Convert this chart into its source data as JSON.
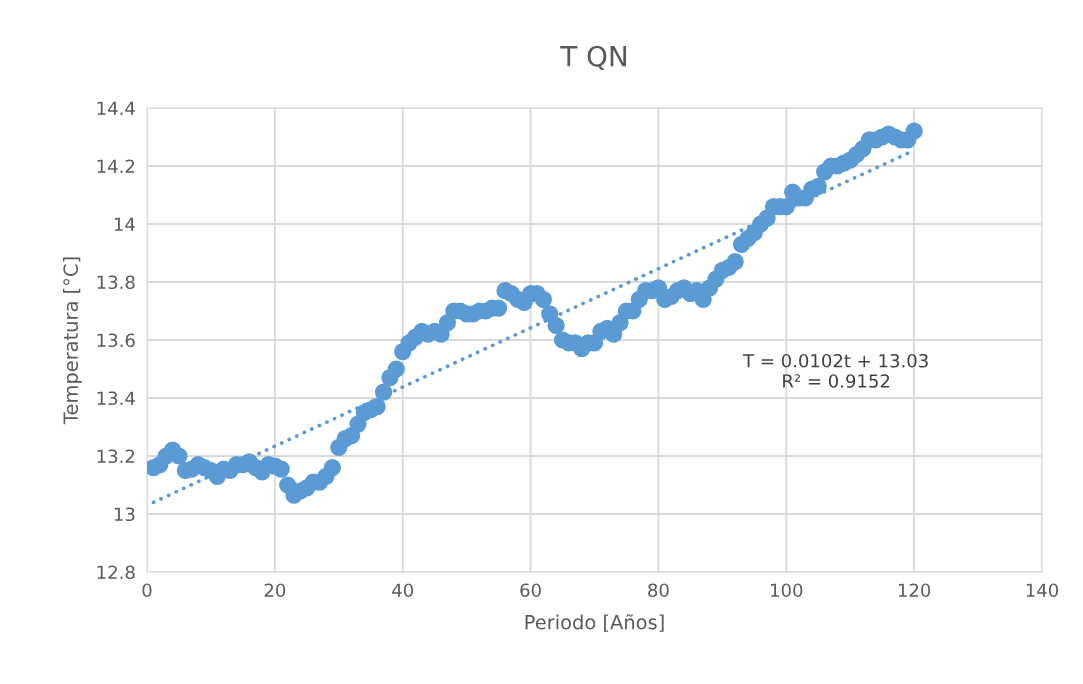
{
  "chart_data": {
    "type": "scatter",
    "title": "T QN",
    "xlabel": "Periodo [Años]",
    "ylabel": "Temperatura [°C]",
    "xlim": [
      0,
      140
    ],
    "xticks": [
      0,
      20,
      40,
      60,
      80,
      100,
      120,
      140
    ],
    "ylim": [
      12.8,
      14.4
    ],
    "yticks": [
      12.8,
      13,
      13.2,
      13.4,
      13.6,
      13.8,
      14,
      14.2,
      14.4
    ],
    "grid": true,
    "legend": false,
    "marker": "circle",
    "x": [
      1,
      2,
      3,
      4,
      5,
      6,
      7,
      8,
      9,
      10,
      11,
      12,
      13,
      14,
      15,
      16,
      17,
      18,
      19,
      20,
      21,
      22,
      23,
      24,
      25,
      26,
      27,
      28,
      29,
      30,
      31,
      32,
      33,
      34,
      35,
      36,
      37,
      38,
      39,
      40,
      41,
      42,
      43,
      44,
      45,
      46,
      47,
      48,
      49,
      50,
      51,
      52,
      53,
      54,
      55,
      56,
      57,
      58,
      59,
      60,
      61,
      62,
      63,
      64,
      65,
      66,
      67,
      68,
      69,
      70,
      71,
      72,
      73,
      74,
      75,
      76,
      77,
      78,
      79,
      80,
      81,
      82,
      83,
      84,
      85,
      86,
      87,
      88,
      89,
      90,
      91,
      92,
      93,
      94,
      95,
      96,
      97,
      98,
      99,
      100,
      101,
      102,
      103,
      104,
      105,
      106,
      107,
      108,
      109,
      110,
      111,
      112,
      113,
      114,
      115,
      116,
      117,
      118,
      119,
      120
    ],
    "series": [
      {
        "color": "#5b9bd5",
        "values": [
          13.16,
          13.17,
          13.2,
          13.22,
          13.2,
          13.15,
          13.155,
          13.17,
          13.16,
          13.15,
          13.13,
          13.155,
          13.15,
          13.17,
          13.17,
          13.18,
          13.16,
          13.145,
          13.17,
          13.165,
          13.155,
          13.1,
          13.065,
          13.08,
          13.09,
          13.11,
          13.11,
          13.13,
          13.16,
          13.23,
          13.26,
          13.27,
          13.31,
          13.35,
          13.36,
          13.37,
          13.42,
          13.47,
          13.5,
          13.56,
          13.59,
          13.61,
          13.63,
          13.62,
          13.63,
          13.62,
          13.66,
          13.7,
          13.7,
          13.69,
          13.69,
          13.7,
          13.7,
          13.71,
          13.71,
          13.77,
          13.76,
          13.74,
          13.73,
          13.76,
          13.76,
          13.74,
          13.69,
          13.65,
          13.6,
          13.59,
          13.59,
          13.57,
          13.59,
          13.59,
          13.63,
          13.64,
          13.62,
          13.66,
          13.7,
          13.7,
          13.74,
          13.77,
          13.77,
          13.78,
          13.74,
          13.75,
          13.77,
          13.78,
          13.76,
          13.77,
          13.74,
          13.78,
          13.81,
          13.84,
          13.85,
          13.87,
          13.93,
          13.95,
          13.97,
          14.0,
          14.02,
          14.06,
          14.06,
          14.06,
          14.11,
          14.09,
          14.09,
          14.12,
          14.13,
          14.18,
          14.2,
          14.2,
          14.21,
          14.22,
          14.24,
          14.26,
          14.29,
          14.29,
          14.3,
          14.31,
          14.3,
          14.29,
          14.29,
          14.32
        ]
      },
      {
        "type": "line",
        "color": "#5b9bd5",
        "marker": "none",
        "line_style": "dotted",
        "x": [
          1,
          120
        ],
        "values": [
          13.04,
          14.254
        ]
      }
    ],
    "annotations": [
      "T = 0.0102t + 13.03\nR² = 0.9152"
    ]
  }
}
